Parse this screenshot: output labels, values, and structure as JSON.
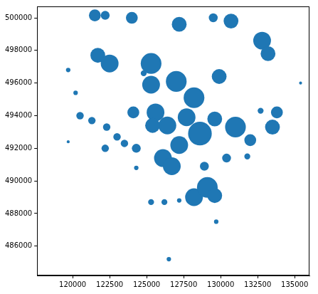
{
  "chart_data": {
    "type": "map",
    "color": "#1f77b4",
    "grid": false,
    "xlim": [
      117600,
      136000
    ],
    "ylim": [
      484200,
      500700
    ],
    "xticks": [
      120000,
      122500,
      125000,
      127500,
      130000,
      132500,
      135000
    ],
    "yticks": [
      486000,
      488000,
      490000,
      492000,
      494000,
      496000,
      498000,
      500000
    ],
    "x": [
      121500,
      122200,
      121700,
      122500,
      125300,
      125300,
      127000,
      128200,
      129900,
      127700,
      125600,
      126400,
      125400,
      124100,
      128600,
      129600,
      131000,
      132000,
      133500,
      133800,
      127200,
      126100,
      126700,
      128200,
      129100,
      129600,
      132800,
      133200,
      130700,
      127200,
      124000,
      129500,
      119700,
      120200,
      120500,
      121300,
      122300,
      123000,
      123500,
      124300,
      122200,
      119700,
      124300,
      125300,
      126200,
      127200,
      126500,
      129700,
      130400,
      131800,
      135400,
      124800,
      132700,
      128900
    ],
    "y": [
      500150,
      500150,
      497700,
      497200,
      497200,
      495900,
      496100,
      495100,
      496400,
      493900,
      494200,
      493400,
      493400,
      494200,
      492900,
      493800,
      493300,
      492500,
      493300,
      494200,
      492200,
      491400,
      490900,
      489000,
      489600,
      489100,
      498600,
      497800,
      499800,
      499600,
      500000,
      500000,
      496800,
      495400,
      494000,
      493700,
      493300,
      492700,
      492300,
      492000,
      492000,
      492400,
      490800,
      488700,
      488700,
      488800,
      485200,
      487500,
      491400,
      491500,
      496000,
      496600,
      494300,
      490900
    ],
    "radius": [
      400,
      300,
      500,
      600,
      700,
      600,
      700,
      700,
      500,
      600,
      600,
      600,
      500,
      400,
      800,
      500,
      700,
      400,
      500,
      400,
      600,
      600,
      600,
      600,
      700,
      500,
      600,
      500,
      500,
      500,
      400,
      300,
      150,
      150,
      250,
      250,
      250,
      250,
      250,
      300,
      250,
      100,
      150,
      200,
      200,
      150,
      150,
      150,
      300,
      200,
      100,
      200,
      200,
      300
    ]
  }
}
